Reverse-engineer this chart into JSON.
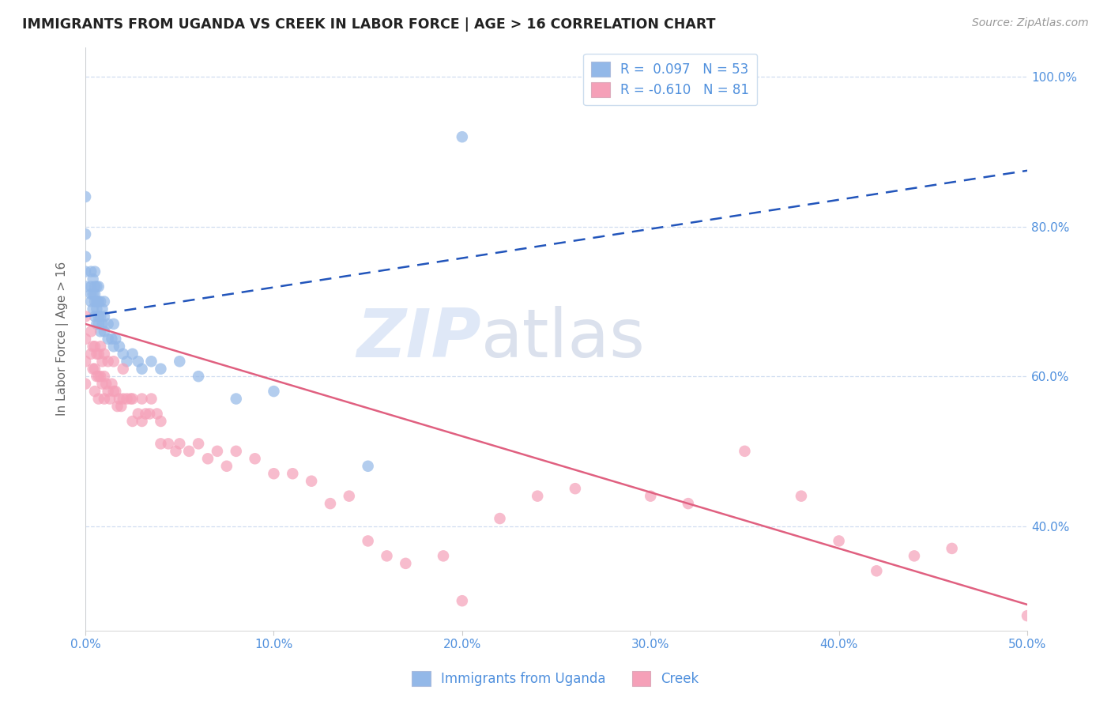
{
  "title": "IMMIGRANTS FROM UGANDA VS CREEK IN LABOR FORCE | AGE > 16 CORRELATION CHART",
  "source": "Source: ZipAtlas.com",
  "ylabel": "In Labor Force | Age > 16",
  "xlim": [
    0.0,
    0.5
  ],
  "ylim": [
    0.26,
    1.04
  ],
  "xticks": [
    0.0,
    0.1,
    0.2,
    0.3,
    0.4,
    0.5
  ],
  "yticks": [
    0.4,
    0.6,
    0.8,
    1.0
  ],
  "ytick_labels": [
    "40.0%",
    "60.0%",
    "80.0%",
    "100.0%"
  ],
  "xtick_labels": [
    "0.0%",
    "10.0%",
    "20.0%",
    "30.0%",
    "40.0%",
    "50.0%"
  ],
  "blue_color": "#93b8e8",
  "pink_color": "#f5a0b8",
  "blue_line_color": "#2255bb",
  "pink_line_color": "#e06080",
  "title_color": "#222222",
  "axis_tick_color": "#5090dd",
  "grid_color": "#d0ddf0",
  "background_color": "#ffffff",
  "blue_scatter_x": [
    0.0,
    0.0,
    0.0,
    0.0,
    0.0,
    0.003,
    0.003,
    0.003,
    0.003,
    0.004,
    0.004,
    0.004,
    0.005,
    0.005,
    0.005,
    0.005,
    0.005,
    0.006,
    0.006,
    0.006,
    0.006,
    0.007,
    0.007,
    0.007,
    0.007,
    0.008,
    0.008,
    0.008,
    0.009,
    0.009,
    0.01,
    0.01,
    0.01,
    0.012,
    0.012,
    0.014,
    0.015,
    0.015,
    0.016,
    0.018,
    0.02,
    0.022,
    0.025,
    0.028,
    0.03,
    0.035,
    0.04,
    0.05,
    0.06,
    0.08,
    0.1,
    0.15,
    0.2
  ],
  "blue_scatter_y": [
    0.72,
    0.74,
    0.76,
    0.79,
    0.84,
    0.7,
    0.71,
    0.72,
    0.74,
    0.69,
    0.71,
    0.73,
    0.68,
    0.7,
    0.71,
    0.72,
    0.74,
    0.67,
    0.69,
    0.7,
    0.72,
    0.67,
    0.68,
    0.7,
    0.72,
    0.66,
    0.68,
    0.7,
    0.67,
    0.69,
    0.66,
    0.68,
    0.7,
    0.65,
    0.67,
    0.65,
    0.64,
    0.67,
    0.65,
    0.64,
    0.63,
    0.62,
    0.63,
    0.62,
    0.61,
    0.62,
    0.61,
    0.62,
    0.6,
    0.57,
    0.58,
    0.48,
    0.92
  ],
  "pink_scatter_x": [
    0.0,
    0.0,
    0.0,
    0.0,
    0.003,
    0.003,
    0.004,
    0.004,
    0.005,
    0.005,
    0.005,
    0.006,
    0.006,
    0.007,
    0.007,
    0.007,
    0.008,
    0.008,
    0.009,
    0.009,
    0.01,
    0.01,
    0.01,
    0.011,
    0.012,
    0.012,
    0.013,
    0.014,
    0.015,
    0.015,
    0.016,
    0.017,
    0.018,
    0.019,
    0.02,
    0.02,
    0.022,
    0.024,
    0.025,
    0.025,
    0.028,
    0.03,
    0.03,
    0.032,
    0.034,
    0.035,
    0.038,
    0.04,
    0.04,
    0.044,
    0.048,
    0.05,
    0.055,
    0.06,
    0.065,
    0.07,
    0.075,
    0.08,
    0.09,
    0.1,
    0.11,
    0.12,
    0.13,
    0.14,
    0.15,
    0.16,
    0.17,
    0.19,
    0.2,
    0.22,
    0.24,
    0.26,
    0.3,
    0.32,
    0.35,
    0.38,
    0.4,
    0.42,
    0.44,
    0.46,
    0.5
  ],
  "pink_scatter_y": [
    0.68,
    0.65,
    0.62,
    0.59,
    0.66,
    0.63,
    0.64,
    0.61,
    0.64,
    0.61,
    0.58,
    0.63,
    0.6,
    0.63,
    0.6,
    0.57,
    0.64,
    0.6,
    0.62,
    0.59,
    0.63,
    0.6,
    0.57,
    0.59,
    0.62,
    0.58,
    0.57,
    0.59,
    0.62,
    0.58,
    0.58,
    0.56,
    0.57,
    0.56,
    0.61,
    0.57,
    0.57,
    0.57,
    0.57,
    0.54,
    0.55,
    0.57,
    0.54,
    0.55,
    0.55,
    0.57,
    0.55,
    0.54,
    0.51,
    0.51,
    0.5,
    0.51,
    0.5,
    0.51,
    0.49,
    0.5,
    0.48,
    0.5,
    0.49,
    0.47,
    0.47,
    0.46,
    0.43,
    0.44,
    0.38,
    0.36,
    0.35,
    0.36,
    0.3,
    0.41,
    0.44,
    0.45,
    0.44,
    0.43,
    0.5,
    0.44,
    0.38,
    0.34,
    0.36,
    0.37,
    0.28
  ],
  "blue_trend_x": [
    0.0,
    0.5
  ],
  "blue_trend_y": [
    0.68,
    0.875
  ],
  "pink_trend_x": [
    0.0,
    0.5
  ],
  "pink_trend_y": [
    0.67,
    0.295
  ],
  "watermark_zip": "ZIP",
  "watermark_atlas": "atlas",
  "legend_label1": "R =  0.097   N = 53",
  "legend_label2": "R = -0.610   N = 81",
  "legend_label_bottom1": "Immigrants from Uganda",
  "legend_label_bottom2": "Creek",
  "figsize": [
    14.06,
    8.92
  ],
  "dpi": 100
}
